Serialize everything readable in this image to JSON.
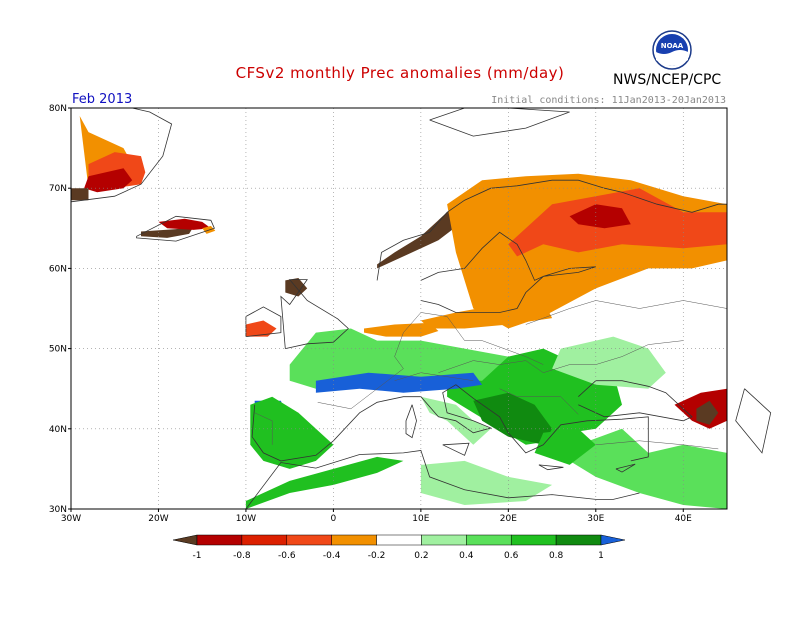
{
  "title": "CFSv2 monthly Prec anomalies (mm/day)",
  "month": "Feb 2013",
  "initial_conditions": "Initial conditions: 11Jan2013-20Jan2013",
  "agency": "NWS/NCEP/CPC",
  "logo_text": "NOAA",
  "lat_labels": [
    "80N",
    "70N",
    "60N",
    "50N",
    "40N",
    "30N"
  ],
  "lon_labels": [
    "30W",
    "20W",
    "10W",
    "0",
    "10E",
    "20E",
    "30E",
    "40E"
  ],
  "colorbar": {
    "colors": [
      "#5a3a22",
      "#b40000",
      "#dc2000",
      "#f04818",
      "#f29000",
      "#ffffff",
      "#a0f0a0",
      "#5ae05a",
      "#20c020",
      "#108a10",
      "#1860d8"
    ],
    "labels": [
      "-1",
      "-0.8",
      "-0.6",
      "-0.4",
      "-0.2",
      "0.2",
      "0.4",
      "0.6",
      "0.8",
      "1"
    ]
  },
  "map": {
    "lon_range": [
      -30,
      45
    ],
    "lat_range": [
      30,
      80
    ],
    "anomaly_regions": [
      {
        "name": "greenland-east-orange",
        "value": -0.3,
        "lons": [
          -29,
          -28,
          -26,
          -24,
          -23,
          -24,
          -25,
          -28,
          -29
        ],
        "lats": [
          79,
          77,
          76,
          75,
          73,
          72,
          70,
          70,
          79
        ]
      },
      {
        "name": "greenland-east-red",
        "value": -0.5,
        "lons": [
          -28,
          -25,
          -22,
          -21.5,
          -22,
          -25,
          -28
        ],
        "lats": [
          73,
          74.5,
          74,
          72,
          70.5,
          70,
          71
        ]
      },
      {
        "name": "greenland-east-darkred",
        "value": -0.7,
        "lons": [
          -28,
          -24,
          -23,
          -24,
          -27,
          -28.5
        ],
        "lats": [
          71.5,
          72.5,
          71,
          70,
          69.5,
          70
        ]
      },
      {
        "name": "greenland-brown",
        "value": -1.0,
        "lons": [
          -30,
          -28,
          -28,
          -30
        ],
        "lats": [
          70,
          70,
          68.5,
          68.5
        ]
      },
      {
        "name": "iceland-brown",
        "value": -1.0,
        "lons": [
          -22,
          -18,
          -16,
          -16.5,
          -19,
          -22
        ],
        "lats": [
          64.6,
          64.9,
          65.2,
          64.3,
          63.8,
          64
        ]
      },
      {
        "name": "iceland-red",
        "value": -0.6,
        "lons": [
          -20,
          -17,
          -15,
          -14,
          -16,
          -19
        ],
        "lats": [
          65.8,
          66.2,
          65.8,
          65,
          64.8,
          65
        ]
      },
      {
        "name": "iceland-orange",
        "value": -0.3,
        "lons": [
          -15,
          -14,
          -13.5,
          -14.5
        ],
        "lats": [
          65,
          65.3,
          64.7,
          64.3
        ]
      },
      {
        "name": "norway-brown",
        "value": -1.0,
        "lons": [
          5,
          8,
          12,
          15,
          17,
          16,
          13,
          10,
          7,
          5
        ],
        "lats": [
          60,
          61.5,
          63.5,
          66,
          69,
          69.5,
          67,
          64,
          62,
          60.5
        ]
      },
      {
        "name": "norway-darkred",
        "value": -0.8,
        "lons": [
          12,
          16,
          19,
          18,
          15,
          13
        ],
        "lats": [
          66,
          68.5,
          70,
          71,
          69,
          67
        ]
      },
      {
        "name": "scandinavia-orange",
        "value": -0.3,
        "lons": [
          13,
          17,
          22,
          28,
          34,
          40,
          45,
          45,
          41,
          36,
          30,
          24,
          20,
          16,
          14
        ],
        "lats": [
          68,
          71,
          71.5,
          71.8,
          71,
          69,
          68,
          61,
          60,
          60,
          57.5,
          54,
          52.5,
          55,
          62
        ]
      },
      {
        "name": "finland-russia-red",
        "value": -0.5,
        "lons": [
          20,
          25,
          30,
          35,
          40,
          45,
          45,
          40,
          33,
          28,
          24,
          21
        ],
        "lats": [
          63,
          68,
          69,
          70,
          67,
          67,
          63,
          62.5,
          63,
          62,
          63,
          61.5
        ]
      },
      {
        "name": "kola-darkred",
        "value": -0.7,
        "lons": [
          27,
          30,
          33,
          34,
          31,
          28
        ],
        "lats": [
          66.5,
          68,
          67.5,
          65.5,
          65,
          65.5
        ]
      },
      {
        "name": "scotland-darkred",
        "value": -0.8,
        "lons": [
          -5.5,
          -4,
          -3,
          -4,
          -5.5
        ],
        "lats": [
          58.5,
          58.8,
          57.5,
          56.5,
          57
        ]
      },
      {
        "name": "ireland-orange",
        "value": -0.4,
        "lons": [
          -10,
          -8,
          -6.5,
          -7.5,
          -10
        ],
        "lats": [
          53,
          53.5,
          52.5,
          51.5,
          51.5
        ]
      },
      {
        "name": "northsea-orange",
        "value": -0.3,
        "lons": [
          3.5,
          7,
          11,
          12,
          10,
          6,
          3.5
        ],
        "lats": [
          52.5,
          53,
          53.2,
          52.2,
          51.5,
          51.5,
          52
        ]
      },
      {
        "name": "poland-orange",
        "value": -0.3,
        "lons": [
          10,
          14,
          19,
          24,
          25,
          20,
          15,
          11
        ],
        "lats": [
          53.5,
          54.5,
          55.5,
          56,
          53.8,
          53,
          52.5,
          52.5
        ]
      },
      {
        "name": "turkey-east-red",
        "value": -0.6,
        "lons": [
          39,
          42,
          45,
          45,
          43,
          41
        ],
        "lats": [
          43,
          44.5,
          45,
          41,
          40,
          41
        ]
      },
      {
        "name": "turkey-east-darkred",
        "value": -0.8,
        "lons": [
          41.5,
          43,
          44,
          43,
          41.5
        ],
        "lats": [
          42.5,
          43.5,
          42,
          40.5,
          41
        ]
      },
      {
        "name": "france-green",
        "value": 0.5,
        "lons": [
          -5,
          -2,
          2,
          5,
          10,
          15,
          20,
          20,
          15,
          10,
          6,
          2,
          -2,
          -5
        ],
        "lats": [
          48,
          52,
          52.5,
          51,
          51,
          50,
          49,
          46,
          45.5,
          45,
          45.5,
          46,
          45,
          46
        ]
      },
      {
        "name": "balkans-green",
        "value": 0.6,
        "lons": [
          13,
          17,
          20,
          24,
          28,
          32,
          33,
          30,
          27,
          25,
          22,
          19,
          16,
          13
        ],
        "lats": [
          46,
          46,
          49,
          50,
          48,
          47,
          43,
          40,
          39.5,
          38.5,
          38,
          40,
          42,
          44
        ]
      },
      {
        "name": "balkans-darkgreen",
        "value": 0.9,
        "lons": [
          16,
          20,
          23,
          25,
          24,
          20,
          17
        ],
        "lats": [
          43.5,
          44.5,
          43,
          40,
          38,
          39,
          41
        ]
      },
      {
        "name": "ukraine-lightgreen",
        "value": 0.3,
        "lons": [
          26,
          32,
          36,
          38,
          36,
          30,
          25
        ],
        "lats": [
          50,
          51.5,
          50,
          47,
          45,
          45.5,
          47.5
        ]
      },
      {
        "name": "italy-lightgreen",
        "value": 0.3,
        "lons": [
          10,
          14,
          16,
          18,
          16,
          13,
          11
        ],
        "lats": [
          44,
          43,
          41,
          40,
          38,
          41,
          42
        ]
      },
      {
        "name": "alps-blue",
        "value": 1.0,
        "lons": [
          -2,
          4,
          10,
          16,
          17,
          14,
          8,
          3,
          -2
        ],
        "lats": [
          46,
          47,
          46.5,
          47,
          45.5,
          45,
          44.5,
          45,
          44.5
        ]
      },
      {
        "name": "iberia-blue",
        "value": 1.0,
        "lons": [
          -9,
          -6,
          -5,
          -4,
          -6,
          -8,
          -9
        ],
        "lats": [
          43.5,
          43.5,
          40.5,
          37,
          36.5,
          37.5,
          40
        ]
      },
      {
        "name": "iberia-green",
        "value": 0.6,
        "lons": [
          -9.5,
          -7,
          -4,
          -2,
          0,
          -2,
          -5,
          -8,
          -9.5
        ],
        "lats": [
          43,
          44,
          42,
          40,
          38,
          36,
          35,
          36,
          38
        ]
      },
      {
        "name": "africa-green",
        "value": 0.6,
        "lons": [
          -10,
          -5,
          0,
          5,
          8,
          5,
          0,
          -5,
          -10
        ],
        "lats": [
          31,
          33.5,
          35,
          36.5,
          36,
          34.5,
          33,
          32,
          30
        ]
      },
      {
        "name": "libya-lightgreen",
        "value": 0.3,
        "lons": [
          10,
          15,
          20,
          25,
          22,
          15,
          10
        ],
        "lats": [
          35.5,
          36,
          34,
          33,
          31,
          30.5,
          32
        ]
      },
      {
        "name": "levant-green",
        "value": 0.4,
        "lons": [
          28,
          33,
          36,
          40,
          45,
          45,
          40,
          35,
          30,
          27
        ],
        "lats": [
          38,
          40,
          37,
          38,
          37,
          30,
          30.5,
          32,
          34,
          36
        ]
      },
      {
        "name": "aegean-green",
        "value": 0.7,
        "lons": [
          24,
          28,
          30,
          27,
          23
        ],
        "lats": [
          39.5,
          40,
          38,
          35.5,
          37
        ]
      }
    ],
    "coastlines": [
      {
        "name": "scandinavia-coast",
        "lons": [
          5,
          5.5,
          8,
          11,
          13,
          15,
          18,
          21,
          25,
          28,
          31,
          33,
          37,
          41,
          44,
          45
        ],
        "lats": [
          58.5,
          62,
          63.5,
          64.5,
          67,
          68.5,
          70,
          70.3,
          71,
          71,
          70,
          69.5,
          68,
          67,
          68,
          68
        ]
      },
      {
        "name": "baltic-coast",
        "lons": [
          10,
          12,
          14,
          17,
          19,
          21,
          22,
          24,
          27,
          30,
          28,
          24,
          23,
          22,
          21,
          19,
          17,
          15,
          12,
          10
        ],
        "lats": [
          56,
          55.5,
          54.5,
          54.5,
          54.5,
          55,
          57,
          59,
          60,
          60.2,
          59.5,
          59,
          58.5,
          61,
          63,
          64.5,
          62.5,
          60,
          59.5,
          58.5
        ]
      },
      {
        "name": "europe-south-coast",
        "lons": [
          -9,
          -9.3,
          -8,
          -6,
          -2,
          0,
          3,
          5,
          8,
          10,
          12,
          14,
          16,
          18,
          16,
          13,
          12.5,
          14,
          16,
          19,
          20,
          22,
          24,
          26,
          29,
          33,
          36,
          36,
          34
        ],
        "lats": [
          43,
          39,
          37,
          36,
          36.7,
          38.5,
          42,
          43.3,
          44,
          44,
          41.5,
          41,
          39.5,
          40.1,
          41,
          42,
          44.5,
          45.5,
          43.8,
          41.5,
          39.5,
          37,
          38,
          40.5,
          41,
          41.2,
          41.5,
          36.5,
          36
        ]
      },
      {
        "name": "black-sea",
        "lons": [
          28,
          30,
          33,
          36,
          38,
          41,
          40,
          35,
          31,
          28
        ],
        "lats": [
          44,
          46,
          46,
          45.3,
          44.5,
          41.5,
          41,
          42,
          41.5,
          43
        ]
      },
      {
        "name": "north-africa",
        "lons": [
          -10,
          -6,
          -2,
          3,
          8,
          10,
          11,
          15,
          20,
          25,
          30,
          32,
          35
        ],
        "lats": [
          30,
          35.8,
          35.1,
          36.8,
          37,
          37.3,
          34,
          32.4,
          31.4,
          31.8,
          31.2,
          31.2,
          32
        ]
      },
      {
        "name": "uk-coast",
        "lons": [
          -5.5,
          -3,
          0,
          1.7,
          0.5,
          -3,
          -5,
          -3,
          -5,
          -6,
          -5.5
        ],
        "lats": [
          50,
          50.6,
          50.8,
          52.5,
          53.7,
          56,
          58.6,
          58.6,
          55.5,
          56.5,
          50
        ]
      },
      {
        "name": "ireland",
        "lons": [
          -10,
          -6,
          -6,
          -8,
          -10,
          -10
        ],
        "lats": [
          51.5,
          52,
          54,
          55.2,
          54,
          51.5
        ]
      },
      {
        "name": "iceland",
        "lons": [
          -22.5,
          -18,
          -14,
          -13.6,
          -18,
          -22.5,
          -22.5
        ],
        "lats": [
          64,
          66.5,
          66,
          65,
          63.4,
          63.8,
          64
        ]
      },
      {
        "name": "greenland",
        "lons": [
          -30,
          -25,
          -22,
          -19.5,
          -18.5,
          -21,
          -23,
          -30
        ],
        "lats": [
          68.3,
          69,
          70.5,
          74,
          78,
          79.5,
          80,
          80
        ]
      },
      {
        "name": "svalbard",
        "lons": [
          11,
          15,
          20,
          27,
          22,
          16,
          11
        ],
        "lats": [
          78.5,
          80,
          80,
          79.5,
          77.5,
          76.5,
          78.5
        ]
      },
      {
        "name": "caspian",
        "lons": [
          47,
          46,
          49,
          50,
          47
        ],
        "lats": [
          45,
          41,
          37,
          42,
          45
        ]
      },
      {
        "name": "corsica-sardinia",
        "lons": [
          9,
          9.5,
          9,
          8.3,
          8.3,
          9
        ],
        "lats": [
          43,
          41,
          38.9,
          39.4,
          41,
          43
        ]
      },
      {
        "name": "sicily",
        "lons": [
          12.5,
          15.5,
          15,
          12.5
        ],
        "lats": [
          38,
          38.2,
          36.7,
          38
        ]
      },
      {
        "name": "crete",
        "lons": [
          23.5,
          26.3,
          24.5,
          23.5
        ],
        "lats": [
          35.5,
          35.2,
          34.9,
          35.5
        ]
      },
      {
        "name": "cyprus",
        "lons": [
          32.3,
          34.5,
          33,
          32.3
        ],
        "lats": [
          35,
          35.6,
          34.6,
          35
        ]
      }
    ],
    "borders": [
      {
        "name": "border-1",
        "lons": [
          -1.8,
          2,
          8,
          7,
          8,
          10,
          13,
          15,
          17,
          22,
          24
        ],
        "lats": [
          43.3,
          42.5,
          47.5,
          49,
          52,
          54.5,
          54,
          51,
          51,
          49,
          48
        ]
      },
      {
        "name": "border-2",
        "lons": [
          12,
          16,
          19,
          22,
          24,
          27,
          30,
          33,
          36,
          40
        ],
        "lats": [
          47,
          48.5,
          48,
          48.5,
          47,
          48,
          48,
          49,
          50.5,
          51
        ]
      },
      {
        "name": "border-3",
        "lons": [
          22,
          27,
          30,
          35,
          40,
          45
        ],
        "lats": [
          53,
          55,
          56,
          55,
          56,
          55
        ]
      },
      {
        "name": "border-4",
        "lons": [
          7,
          10,
          13,
          16
        ],
        "lats": [
          46,
          47,
          46.5,
          46
        ]
      },
      {
        "name": "border-5",
        "lons": [
          19,
          21,
          23,
          26,
          28
        ],
        "lats": [
          45,
          44,
          44,
          44,
          41.8
        ]
      },
      {
        "name": "border-6",
        "lons": [
          30,
          35,
          40,
          44
        ],
        "lats": [
          38,
          38.5,
          38,
          37.5
        ]
      },
      {
        "name": "border-7",
        "lons": [
          -9,
          -7,
          -7
        ],
        "lats": [
          42,
          41,
          38
        ]
      }
    ]
  }
}
